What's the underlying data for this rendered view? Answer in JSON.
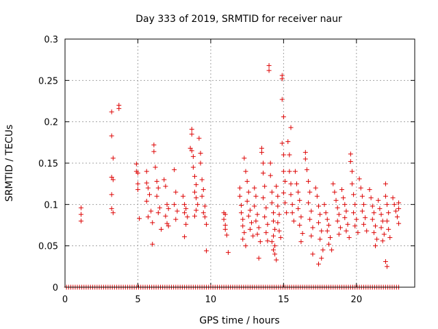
{
  "chart_data": {
    "type": "scatter",
    "title": "Day 333 of 2019, SRMTID for receiver naur",
    "xlabel": "GPS time / hours",
    "ylabel": "SRMTID / TECUs",
    "xlim": [
      0,
      24
    ],
    "ylim": [
      0,
      0.3
    ],
    "grid": true,
    "xticks": [
      0,
      5,
      10,
      15,
      20
    ],
    "xtick_labels": [
      "0",
      "5",
      "10",
      "15",
      "20"
    ],
    "yticks": [
      0,
      0.05,
      0.1,
      0.15,
      0.2,
      0.25,
      0.3
    ],
    "ytick_labels": [
      "0",
      "0.05",
      "0.1",
      "0.15",
      "0.2",
      "0.25",
      "0.3"
    ],
    "marker": "+",
    "color": "#dd0000",
    "series": [
      {
        "name": "SRMTID",
        "points": [
          [
            1.1,
            0.096
          ],
          [
            1.1,
            0.088
          ],
          [
            1.1,
            0.08
          ],
          [
            3.2,
            0.212
          ],
          [
            3.2,
            0.183
          ],
          [
            3.3,
            0.156
          ],
          [
            3.2,
            0.133
          ],
          [
            3.3,
            0.13
          ],
          [
            3.2,
            0.112
          ],
          [
            3.2,
            0.095
          ],
          [
            3.3,
            0.09
          ],
          [
            3.7,
            0.22
          ],
          [
            3.7,
            0.216
          ],
          [
            4.9,
            0.149
          ],
          [
            4.9,
            0.14
          ],
          [
            5.0,
            0.138
          ],
          [
            5.0,
            0.125
          ],
          [
            5.0,
            0.118
          ],
          [
            5.1,
            0.083
          ],
          [
            5.6,
            0.14
          ],
          [
            5.6,
            0.126
          ],
          [
            5.7,
            0.12
          ],
          [
            5.8,
            0.112
          ],
          [
            5.6,
            0.104
          ],
          [
            5.9,
            0.092
          ],
          [
            5.7,
            0.085
          ],
          [
            6.0,
            0.078
          ],
          [
            6.0,
            0.052
          ],
          [
            6.1,
            0.172
          ],
          [
            6.1,
            0.164
          ],
          [
            6.2,
            0.145
          ],
          [
            6.3,
            0.128
          ],
          [
            6.4,
            0.12
          ],
          [
            6.3,
            0.11
          ],
          [
            6.5,
            0.096
          ],
          [
            6.4,
            0.09
          ],
          [
            6.6,
            0.07
          ],
          [
            6.8,
            0.13
          ],
          [
            6.9,
            0.122
          ],
          [
            7.0,
            0.1
          ],
          [
            7.1,
            0.095
          ],
          [
            6.9,
            0.086
          ],
          [
            7.0,
            0.077
          ],
          [
            7.1,
            0.074
          ],
          [
            7.5,
            0.142
          ],
          [
            7.6,
            0.115
          ],
          [
            7.5,
            0.1
          ],
          [
            7.7,
            0.092
          ],
          [
            7.6,
            0.082
          ],
          [
            8.1,
            0.11
          ],
          [
            8.2,
            0.1
          ],
          [
            8.3,
            0.095
          ],
          [
            8.2,
            0.09
          ],
          [
            8.4,
            0.085
          ],
          [
            8.3,
            0.076
          ],
          [
            8.2,
            0.061
          ],
          [
            8.7,
            0.191
          ],
          [
            8.7,
            0.185
          ],
          [
            8.6,
            0.168
          ],
          [
            8.7,
            0.165
          ],
          [
            8.8,
            0.158
          ],
          [
            8.8,
            0.145
          ],
          [
            8.9,
            0.134
          ],
          [
            9.0,
            0.124
          ],
          [
            8.9,
            0.115
          ],
          [
            9.0,
            0.108
          ],
          [
            9.1,
            0.1
          ],
          [
            9.0,
            0.093
          ],
          [
            8.9,
            0.086
          ],
          [
            9.2,
            0.18
          ],
          [
            9.3,
            0.162
          ],
          [
            9.3,
            0.15
          ],
          [
            9.4,
            0.13
          ],
          [
            9.5,
            0.118
          ],
          [
            9.4,
            0.11
          ],
          [
            9.6,
            0.098
          ],
          [
            9.5,
            0.09
          ],
          [
            9.6,
            0.085
          ],
          [
            9.7,
            0.076
          ],
          [
            9.7,
            0.044
          ],
          [
            10.9,
            0.09
          ],
          [
            10.9,
            0.082
          ],
          [
            11.0,
            0.075
          ],
          [
            11.0,
            0.07
          ],
          [
            11.1,
            0.063
          ],
          [
            11.0,
            0.088
          ],
          [
            11.2,
            0.042
          ],
          [
            12.0,
            0.12
          ],
          [
            12.0,
            0.11
          ],
          [
            12.1,
            0.099
          ],
          [
            12.1,
            0.09
          ],
          [
            12.2,
            0.082
          ],
          [
            12.2,
            0.074
          ],
          [
            12.3,
            0.066
          ],
          [
            12.2,
            0.058
          ],
          [
            12.4,
            0.05
          ],
          [
            12.3,
            0.156
          ],
          [
            12.4,
            0.14
          ],
          [
            12.5,
            0.128
          ],
          [
            12.6,
            0.115
          ],
          [
            12.5,
            0.104
          ],
          [
            12.7,
            0.093
          ],
          [
            12.6,
            0.086
          ],
          [
            12.8,
            0.078
          ],
          [
            12.7,
            0.07
          ],
          [
            12.9,
            0.062
          ],
          [
            13.0,
            0.12
          ],
          [
            13.1,
            0.11
          ],
          [
            13.0,
            0.098
          ],
          [
            13.2,
            0.088
          ],
          [
            13.1,
            0.08
          ],
          [
            13.3,
            0.072
          ],
          [
            13.2,
            0.064
          ],
          [
            13.4,
            0.055
          ],
          [
            13.3,
            0.035
          ],
          [
            13.5,
            0.163
          ],
          [
            13.5,
            0.168
          ],
          [
            13.6,
            0.15
          ],
          [
            13.6,
            0.138
          ],
          [
            13.7,
            0.122
          ],
          [
            13.6,
            0.108
          ],
          [
            13.8,
            0.096
          ],
          [
            13.7,
            0.085
          ],
          [
            13.9,
            0.076
          ],
          [
            13.8,
            0.066
          ],
          [
            13.9,
            0.056
          ],
          [
            14.0,
            0.268
          ],
          [
            14.0,
            0.262
          ],
          [
            14.1,
            0.15
          ],
          [
            14.1,
            0.135
          ],
          [
            14.2,
            0.115
          ],
          [
            14.2,
            0.102
          ],
          [
            14.3,
            0.09
          ],
          [
            14.3,
            0.08
          ],
          [
            14.4,
            0.07
          ],
          [
            14.3,
            0.062
          ],
          [
            14.2,
            0.055
          ],
          [
            14.4,
            0.05
          ],
          [
            14.3,
            0.045
          ],
          [
            14.4,
            0.04
          ],
          [
            14.5,
            0.033
          ],
          [
            14.5,
            0.122
          ],
          [
            14.6,
            0.11
          ],
          [
            14.6,
            0.098
          ],
          [
            14.7,
            0.088
          ],
          [
            14.6,
            0.078
          ],
          [
            14.7,
            0.068
          ],
          [
            14.8,
            0.06
          ],
          [
            14.9,
            0.256
          ],
          [
            14.9,
            0.252
          ],
          [
            14.9,
            0.227
          ],
          [
            15.0,
            0.206
          ],
          [
            14.9,
            0.174
          ],
          [
            15.0,
            0.16
          ],
          [
            15.0,
            0.14
          ],
          [
            15.1,
            0.128
          ],
          [
            15.0,
            0.114
          ],
          [
            15.1,
            0.102
          ],
          [
            15.2,
            0.09
          ],
          [
            15.3,
            0.176
          ],
          [
            15.4,
            0.16
          ],
          [
            15.4,
            0.14
          ],
          [
            15.5,
            0.125
          ],
          [
            15.5,
            0.112
          ],
          [
            15.6,
            0.1
          ],
          [
            15.6,
            0.09
          ],
          [
            15.7,
            0.08
          ],
          [
            15.5,
            0.193
          ],
          [
            15.8,
            0.14
          ],
          [
            15.9,
            0.125
          ],
          [
            16.0,
            0.115
          ],
          [
            16.1,
            0.105
          ],
          [
            16.0,
            0.095
          ],
          [
            16.2,
            0.085
          ],
          [
            16.1,
            0.075
          ],
          [
            16.3,
            0.065
          ],
          [
            16.2,
            0.055
          ],
          [
            16.5,
            0.163
          ],
          [
            16.5,
            0.155
          ],
          [
            16.6,
            0.142
          ],
          [
            16.7,
            0.128
          ],
          [
            16.8,
            0.115
          ],
          [
            16.7,
            0.102
          ],
          [
            16.9,
            0.092
          ],
          [
            16.8,
            0.082
          ],
          [
            17.0,
            0.072
          ],
          [
            16.9,
            0.062
          ],
          [
            17.0,
            0.04
          ],
          [
            17.2,
            0.12
          ],
          [
            17.3,
            0.11
          ],
          [
            17.4,
            0.098
          ],
          [
            17.5,
            0.088
          ],
          [
            17.4,
            0.078
          ],
          [
            17.6,
            0.068
          ],
          [
            17.5,
            0.058
          ],
          [
            17.7,
            0.045
          ],
          [
            17.6,
            0.035
          ],
          [
            17.4,
            0.028
          ],
          [
            17.8,
            0.1
          ],
          [
            17.9,
            0.09
          ],
          [
            18.0,
            0.082
          ],
          [
            18.1,
            0.075
          ],
          [
            18.0,
            0.068
          ],
          [
            18.2,
            0.06
          ],
          [
            18.1,
            0.052
          ],
          [
            18.3,
            0.045
          ],
          [
            18.4,
            0.125
          ],
          [
            18.5,
            0.115
          ],
          [
            18.6,
            0.105
          ],
          [
            18.7,
            0.096
          ],
          [
            18.8,
            0.088
          ],
          [
            18.7,
            0.08
          ],
          [
            18.9,
            0.072
          ],
          [
            18.8,
            0.064
          ],
          [
            19.0,
            0.118
          ],
          [
            19.1,
            0.108
          ],
          [
            19.2,
            0.1
          ],
          [
            19.3,
            0.092
          ],
          [
            19.2,
            0.084
          ],
          [
            19.4,
            0.076
          ],
          [
            19.3,
            0.068
          ],
          [
            19.5,
            0.06
          ],
          [
            19.6,
            0.161
          ],
          [
            19.6,
            0.152
          ],
          [
            19.7,
            0.14
          ],
          [
            19.7,
            0.125
          ],
          [
            19.8,
            0.112
          ],
          [
            19.9,
            0.1
          ],
          [
            19.8,
            0.09
          ],
          [
            20.0,
            0.082
          ],
          [
            19.9,
            0.074
          ],
          [
            20.1,
            0.066
          ],
          [
            20.2,
            0.131
          ],
          [
            20.3,
            0.12
          ],
          [
            20.4,
            0.11
          ],
          [
            20.5,
            0.1
          ],
          [
            20.4,
            0.092
          ],
          [
            20.6,
            0.084
          ],
          [
            20.5,
            0.076
          ],
          [
            20.7,
            0.068
          ],
          [
            20.9,
            0.118
          ],
          [
            21.0,
            0.108
          ],
          [
            21.1,
            0.098
          ],
          [
            21.2,
            0.09
          ],
          [
            21.1,
            0.082
          ],
          [
            21.3,
            0.074
          ],
          [
            21.2,
            0.066
          ],
          [
            21.4,
            0.058
          ],
          [
            21.3,
            0.05
          ],
          [
            21.5,
            0.105
          ],
          [
            21.6,
            0.095
          ],
          [
            21.7,
            0.088
          ],
          [
            21.8,
            0.08
          ],
          [
            21.7,
            0.072
          ],
          [
            21.9,
            0.064
          ],
          [
            21.8,
            0.056
          ],
          [
            22.0,
            0.125
          ],
          [
            22.0,
            0.11
          ],
          [
            22.1,
            0.1
          ],
          [
            22.2,
            0.09
          ],
          [
            22.1,
            0.08
          ],
          [
            22.2,
            0.07
          ],
          [
            22.3,
            0.06
          ],
          [
            22.0,
            0.031
          ],
          [
            22.1,
            0.025
          ],
          [
            22.5,
            0.108
          ],
          [
            22.6,
            0.1
          ],
          [
            22.7,
            0.092
          ],
          [
            22.8,
            0.085
          ],
          [
            22.9,
            0.102
          ],
          [
            22.9,
            0.095
          ],
          [
            22.9,
            0.077
          ]
        ],
        "zero_points_x": [
          0.1,
          0.25,
          0.4,
          0.55,
          0.7,
          0.85,
          1.0,
          1.15,
          1.3,
          1.45,
          1.6,
          1.75,
          1.9,
          2.05,
          2.2,
          2.35,
          2.5,
          2.65,
          2.8,
          2.95,
          3.1,
          3.25,
          3.4,
          3.55,
          3.7,
          3.85,
          4.0,
          4.15,
          4.3,
          4.45,
          4.6,
          4.75,
          4.9,
          5.05,
          5.2,
          5.35,
          5.5,
          5.65,
          5.8,
          5.95,
          6.1,
          6.25,
          6.4,
          6.55,
          6.7,
          6.85,
          7.0,
          7.15,
          7.3,
          7.45,
          7.6,
          7.75,
          7.9,
          8.05,
          8.2,
          8.35,
          8.5,
          8.65,
          8.8,
          8.95,
          9.1,
          9.25,
          9.4,
          9.55,
          9.7,
          9.85,
          10.0,
          10.15,
          10.3,
          10.45,
          10.6,
          10.75,
          10.9,
          11.05,
          11.2,
          11.35,
          11.5,
          11.65,
          11.8,
          11.95,
          12.1,
          12.25,
          12.4,
          12.55,
          12.7,
          12.85,
          13.0,
          13.15,
          13.3,
          13.45,
          13.6,
          13.75,
          13.9,
          14.05,
          14.2,
          14.35,
          14.5,
          14.65,
          14.8,
          14.95,
          15.1,
          15.25,
          15.4,
          15.55,
          15.7,
          15.85,
          16.0,
          16.15,
          16.3,
          16.45,
          16.6,
          16.75,
          16.9,
          17.05,
          17.2,
          17.35,
          17.5,
          17.65,
          17.8,
          17.95,
          18.1,
          18.25,
          18.4,
          18.55,
          18.7,
          18.85,
          19.0,
          19.15,
          19.3,
          19.45,
          19.6,
          19.75,
          19.9,
          20.05,
          20.2,
          20.35,
          20.5,
          20.65,
          20.8,
          20.95,
          21.1,
          21.25,
          21.4,
          21.55,
          21.7,
          21.85,
          22.0,
          22.15,
          22.3,
          22.45,
          22.6,
          22.75,
          22.9
        ]
      }
    ]
  }
}
